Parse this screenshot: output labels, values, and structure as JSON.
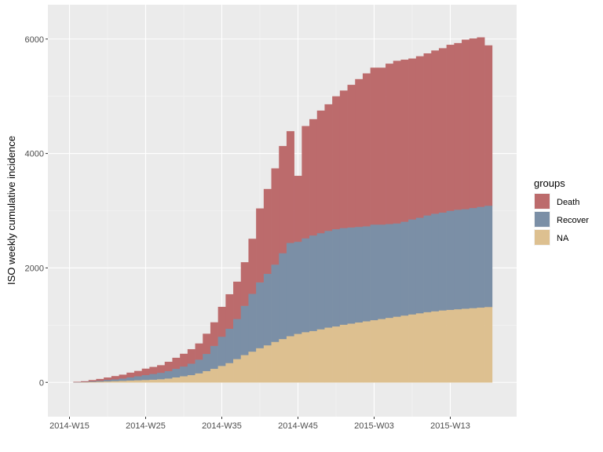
{
  "chart_data": {
    "type": "bar",
    "stacked": true,
    "ylabel": "ISO weekly cumulative incidence",
    "xlabel": "",
    "ylim": [
      -600,
      6600
    ],
    "yticks": [
      0,
      2000,
      4000,
      6000
    ],
    "ytick_labels": [
      "0",
      "2000",
      "4000",
      "6000"
    ],
    "xtick_labels": [
      "2014-W15",
      "2014-W25",
      "2014-W35",
      "2014-W45",
      "2015-W03",
      "2015-W13"
    ],
    "xtick_index": [
      0,
      10,
      20,
      30,
      40,
      50
    ],
    "grid": true,
    "legend": {
      "title": "groups",
      "position": "right"
    },
    "categories": [
      "2014-W15",
      "2014-W16",
      "2014-W17",
      "2014-W18",
      "2014-W19",
      "2014-W20",
      "2014-W21",
      "2014-W22",
      "2014-W23",
      "2014-W24",
      "2014-W25",
      "2014-W26",
      "2014-W27",
      "2014-W28",
      "2014-W29",
      "2014-W30",
      "2014-W31",
      "2014-W32",
      "2014-W33",
      "2014-W34",
      "2014-W35",
      "2014-W36",
      "2014-W37",
      "2014-W38",
      "2014-W39",
      "2014-W40",
      "2014-W41",
      "2014-W42",
      "2014-W43",
      "2014-W44",
      "2014-W45",
      "2014-W46",
      "2014-W47",
      "2014-W48",
      "2014-W49",
      "2014-W50",
      "2014-W51",
      "2014-W52",
      "2015-W01",
      "2015-W02",
      "2015-W03",
      "2015-W04",
      "2015-W05",
      "2015-W06",
      "2015-W07",
      "2015-W08",
      "2015-W09",
      "2015-W10",
      "2015-W11",
      "2015-W12",
      "2015-W13",
      "2015-W14",
      "2015-W15",
      "2015-W16",
      "2015-W17",
      "2015-W18"
    ],
    "series": [
      {
        "name": "NA",
        "color": "#ddc090",
        "values": [
          0,
          2,
          5,
          10,
          15,
          20,
          25,
          30,
          35,
          40,
          45,
          50,
          58,
          70,
          90,
          110,
          130,
          160,
          200,
          240,
          290,
          340,
          410,
          480,
          540,
          600,
          650,
          710,
          760,
          810,
          850,
          880,
          900,
          930,
          960,
          980,
          1010,
          1030,
          1050,
          1070,
          1090,
          1110,
          1130,
          1150,
          1170,
          1190,
          1210,
          1230,
          1245,
          1260,
          1270,
          1280,
          1290,
          1300,
          1310,
          1320
        ]
      },
      {
        "name": "Recover",
        "color": "#7b8fa6",
        "values": [
          0,
          3,
          5,
          10,
          15,
          25,
          30,
          40,
          55,
          70,
          85,
          100,
          112,
          130,
          150,
          170,
          200,
          240,
          300,
          400,
          510,
          600,
          700,
          860,
          1010,
          1150,
          1250,
          1350,
          1500,
          1630,
          1610,
          1640,
          1670,
          1680,
          1690,
          1700,
          1690,
          1680,
          1670,
          1660,
          1670,
          1650,
          1640,
          1630,
          1640,
          1660,
          1670,
          1690,
          1705,
          1710,
          1730,
          1740,
          1740,
          1750,
          1760,
          1770
        ]
      },
      {
        "name": "Death",
        "color": "#bc6b6c",
        "values": [
          0,
          5,
          10,
          20,
          30,
          40,
          55,
          65,
          80,
          90,
          110,
          120,
          130,
          160,
          190,
          220,
          250,
          280,
          350,
          410,
          520,
          600,
          650,
          760,
          960,
          1290,
          1480,
          1680,
          1870,
          1950,
          1150,
          1960,
          2030,
          2140,
          2210,
          2320,
          2400,
          2490,
          2580,
          2670,
          2740,
          2740,
          2800,
          2840,
          2830,
          2810,
          2820,
          2830,
          2850,
          2870,
          2900,
          2910,
          2960,
          2960,
          2960,
          2800
        ]
      }
    ],
    "legend_order": [
      "Death",
      "Recover",
      "NA"
    ]
  }
}
